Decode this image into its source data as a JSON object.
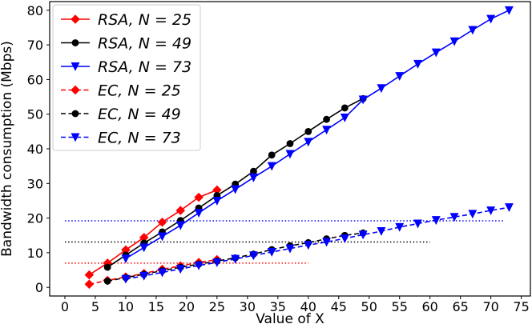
{
  "chart_data": {
    "type": "line",
    "xlabel": "Value of X",
    "ylabel": "Bandwidth consumption (Mbps)",
    "xlim": [
      -2.5,
      76.5
    ],
    "ylim": [
      -2.5,
      82.5
    ],
    "xticks": [
      0,
      5,
      10,
      15,
      20,
      25,
      30,
      35,
      40,
      45,
      50,
      55,
      60,
      65,
      70,
      75
    ],
    "yticks": [
      0,
      10,
      20,
      30,
      40,
      50,
      60,
      70,
      80
    ],
    "xtick_labels": [
      "0",
      "5",
      "10",
      "15",
      "20",
      "25",
      "30",
      "35",
      "40",
      "45",
      "50",
      "55",
      "60",
      "65",
      "70",
      "75"
    ],
    "ytick_labels": [
      "0",
      "10",
      "20",
      "30",
      "40",
      "50",
      "60",
      "70",
      "80"
    ],
    "grid": false,
    "legend_position": "top-left",
    "series": [
      {
        "name": "RSA, N = 25",
        "color": "#ff0000",
        "linestyle": "solid",
        "marker": "diamond",
        "x": [
          4,
          7,
          10,
          13,
          16,
          19,
          22,
          25
        ],
        "y": [
          3.6,
          7.0,
          10.8,
          14.4,
          18.8,
          22.2,
          26.0,
          28.1
        ]
      },
      {
        "name": "RSA, N = 49",
        "color": "#000000",
        "linestyle": "solid",
        "marker": "circle",
        "x": [
          7,
          10,
          13,
          16,
          19,
          22,
          25,
          28,
          31,
          34,
          37,
          40,
          43,
          46,
          49
        ],
        "y": [
          5.8,
          9.3,
          12.8,
          16.0,
          19.3,
          22.9,
          26.5,
          29.8,
          33.5,
          38.2,
          41.5,
          45.0,
          48.5,
          51.8,
          54.5
        ]
      },
      {
        "name": "RSA, N = 73",
        "color": "#0000ff",
        "linestyle": "solid",
        "marker": "triangle-down",
        "x": [
          10,
          13,
          16,
          19,
          22,
          25,
          28,
          31,
          34,
          37,
          40,
          43,
          46,
          49,
          52,
          55,
          58,
          61,
          64,
          67,
          70,
          73
        ],
        "y": [
          8.3,
          11.5,
          14.7,
          17.9,
          21.5,
          25.0,
          28.3,
          31.7,
          35.0,
          38.5,
          42.0,
          45.5,
          49.0,
          54.2,
          57.5,
          61.0,
          64.5,
          67.8,
          71.0,
          74.3,
          77.5,
          80.0
        ]
      },
      {
        "name": "EC, N = 25",
        "color": "#ff0000",
        "linestyle": "dashed",
        "marker": "diamond",
        "x": [
          4,
          7,
          10,
          13,
          16,
          19,
          22,
          25
        ],
        "y": [
          0.9,
          2.0,
          3.0,
          4.0,
          5.2,
          6.2,
          7.2,
          8.0
        ]
      },
      {
        "name": "EC, N = 49",
        "color": "#000000",
        "linestyle": "dashed",
        "marker": "circle",
        "x": [
          7,
          10,
          13,
          16,
          19,
          22,
          25,
          28,
          31,
          34,
          37,
          40,
          43,
          46,
          49
        ],
        "y": [
          1.8,
          2.8,
          3.8,
          4.8,
          5.8,
          6.7,
          7.6,
          8.5,
          9.6,
          10.9,
          12.0,
          12.9,
          14.0,
          15.0,
          15.7
        ]
      },
      {
        "name": "EC, N = 73",
        "color": "#0000ff",
        "linestyle": "dashed",
        "marker": "triangle-down",
        "x": [
          10,
          13,
          16,
          19,
          22,
          25,
          28,
          31,
          34,
          37,
          40,
          43,
          46,
          49,
          52,
          55,
          58,
          61,
          64,
          67,
          70,
          73
        ],
        "y": [
          2.4,
          3.3,
          4.3,
          5.3,
          6.3,
          7.2,
          8.2,
          9.2,
          10.2,
          11.2,
          12.2,
          13.1,
          14.1,
          15.2,
          16.2,
          17.4,
          18.4,
          19.4,
          20.3,
          21.2,
          22.2,
          23.1
        ]
      }
    ],
    "reference_lines": [
      {
        "color": "#ff0000",
        "y": 7.0,
        "x_start": 0,
        "x_end": 40
      },
      {
        "color": "#000000",
        "y": 13.1,
        "x_start": 0,
        "x_end": 60
      },
      {
        "color": "#0000ff",
        "y": 19.2,
        "x_start": 0,
        "x_end": 72
      }
    ],
    "legend": [
      {
        "label_prefix": "RSA, ",
        "label_rest": "N = 25"
      },
      {
        "label_prefix": "RSA, ",
        "label_rest": "N = 49"
      },
      {
        "label_prefix": "RSA, ",
        "label_rest": "N = 73"
      },
      {
        "label_prefix": "EC, ",
        "label_rest": "N = 25"
      },
      {
        "label_prefix": "EC, ",
        "label_rest": "N = 49"
      },
      {
        "label_prefix": "EC, ",
        "label_rest": "N = 73"
      }
    ]
  }
}
